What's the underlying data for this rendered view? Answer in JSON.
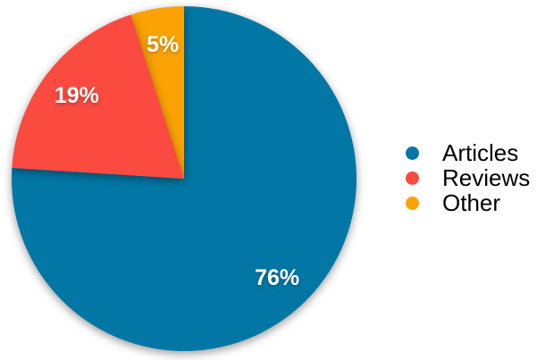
{
  "chart_data": {
    "type": "pie",
    "title": "",
    "categories": [
      "Articles",
      "Reviews",
      "Other"
    ],
    "values": [
      76,
      19,
      5
    ],
    "slice_labels": [
      "76%",
      "19%",
      "5%"
    ],
    "colors": [
      "#0277A5",
      "#FB4A3F",
      "#FBA304"
    ],
    "slice_label_color": "#FFFFFF",
    "start_angle_deg": 0,
    "direction": "clockwise",
    "legend_position": "right",
    "z_order": [
      0,
      2,
      1
    ]
  },
  "legend": {
    "items": [
      {
        "label": "Articles",
        "color": "#0277A5"
      },
      {
        "label": "Reviews",
        "color": "#FB4A3F"
      },
      {
        "label": "Other",
        "color": "#FBA304"
      }
    ]
  }
}
